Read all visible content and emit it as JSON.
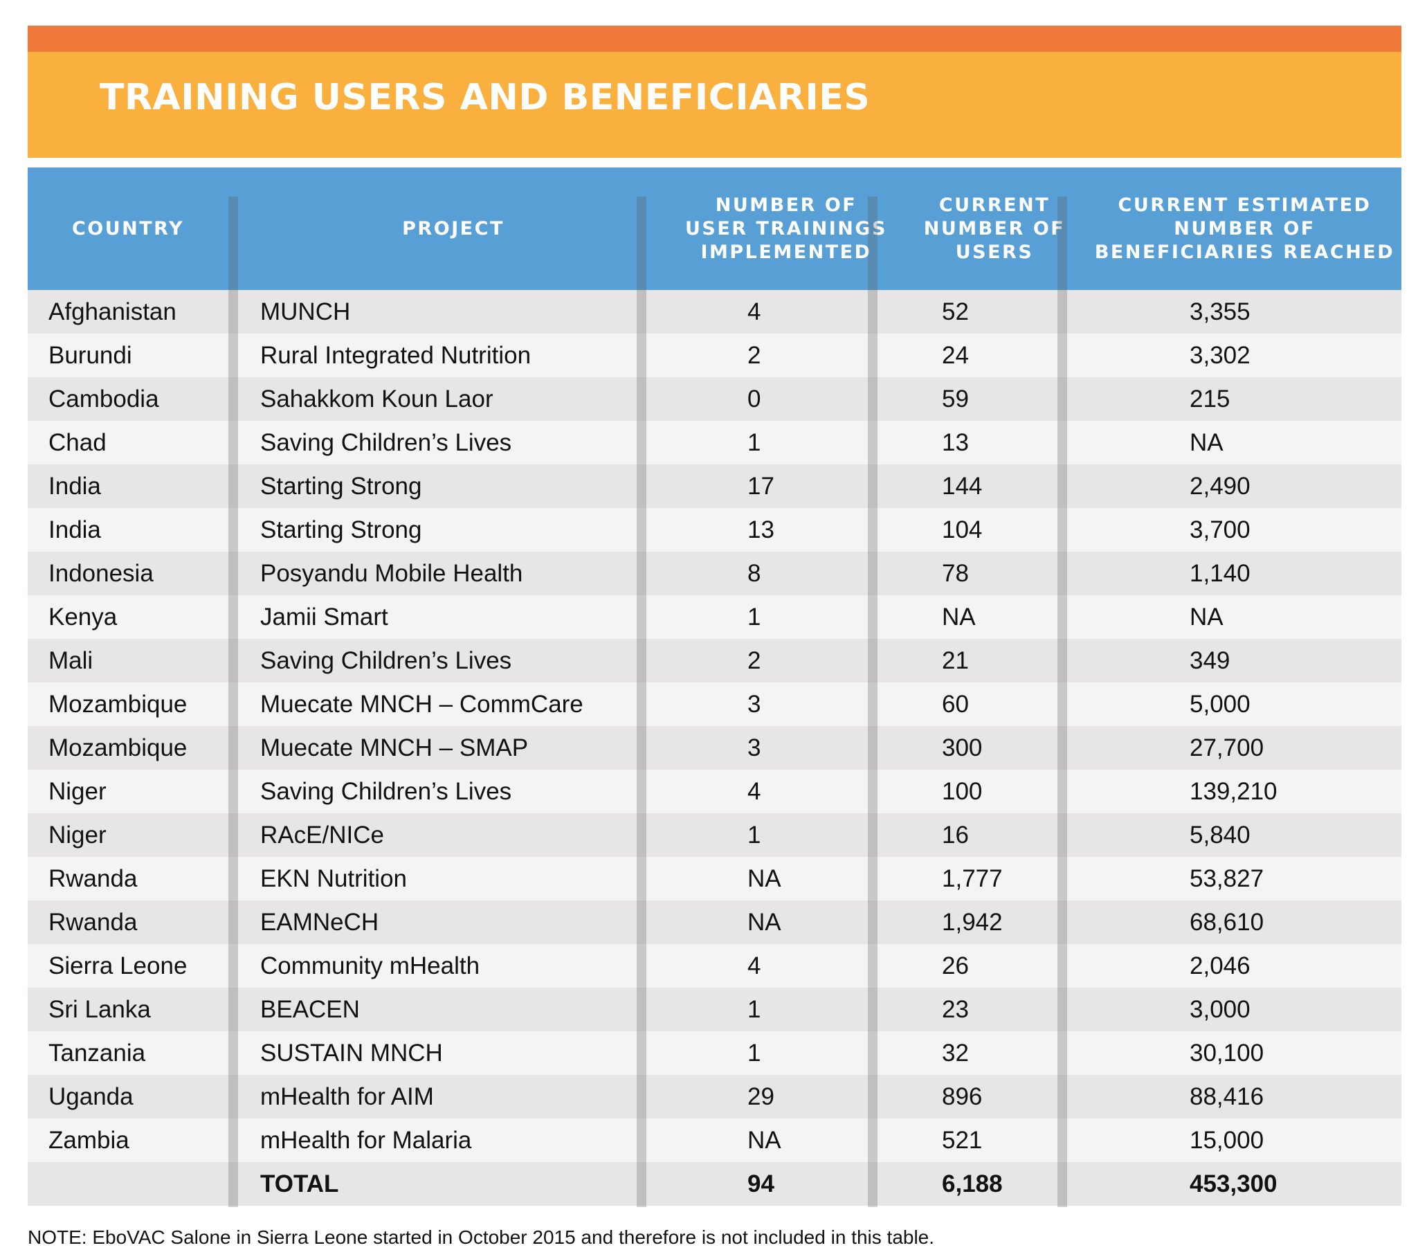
{
  "title": "TRAINING USERS AND BENEFICIARIES",
  "colors": {
    "orange_bar": "#f07a3c",
    "banner": "#f9b03e",
    "header": "#589fd5",
    "row_odd": "#e8e6e4",
    "row_even": "#f4f4f3"
  },
  "table": {
    "headers": [
      "COUNTRY",
      "PROJECT",
      "NUMBER OF\nUSER TRAININGS\nIMPLEMENTED",
      "CURRENT\nNUMBER OF\nUSERS",
      "CURRENT ESTIMATED\nNUMBER OF\nBENEFICIARIES REACHED"
    ],
    "rows": [
      [
        "Afghanistan",
        "MUNCH",
        "4",
        "52",
        "3,355"
      ],
      [
        "Burundi",
        "Rural Integrated Nutrition",
        "2",
        "24",
        "3,302"
      ],
      [
        "Cambodia",
        "Sahakkom Koun Laor",
        "0",
        "59",
        "215"
      ],
      [
        "Chad",
        "Saving Children’s Lives",
        "1",
        "13",
        "NA"
      ],
      [
        "India",
        "Starting Strong",
        "17",
        "144",
        "2,490"
      ],
      [
        "India",
        "Starting Strong",
        "13",
        "104",
        "3,700"
      ],
      [
        "Indonesia",
        "Posyandu Mobile Health",
        "8",
        "78",
        "1,140"
      ],
      [
        "Kenya",
        "Jamii Smart",
        "1",
        "NA",
        "NA"
      ],
      [
        "Mali",
        "Saving Children’s Lives",
        "2",
        "21",
        "349"
      ],
      [
        "Mozambique",
        "Muecate MNCH – CommCare",
        "3",
        "60",
        "5,000"
      ],
      [
        "Mozambique",
        "Muecate MNCH – SMAP",
        "3",
        "300",
        "27,700"
      ],
      [
        "Niger",
        "Saving Children’s Lives",
        "4",
        "100",
        "139,210"
      ],
      [
        "Niger",
        "RAcE/NICe",
        "1",
        "16",
        "5,840"
      ],
      [
        "Rwanda",
        "EKN Nutrition",
        "NA",
        "1,777",
        "53,827"
      ],
      [
        "Rwanda",
        "EAMNeCH",
        "NA",
        "1,942",
        "68,610"
      ],
      [
        "Sierra Leone",
        "Community mHealth",
        "4",
        "26",
        "2,046"
      ],
      [
        "Sri Lanka",
        "BEACEN",
        "1",
        "23",
        "3,000"
      ],
      [
        "Tanzania",
        "SUSTAIN MNCH",
        "1",
        "32",
        "30,100"
      ],
      [
        "Uganda",
        "mHealth for AIM",
        "29",
        "896",
        "88,416"
      ],
      [
        "Zambia",
        "mHealth for Malaria",
        "NA",
        "521",
        "15,000"
      ]
    ],
    "total": [
      "",
      "TOTAL",
      "94",
      "6,188",
      "453,300"
    ]
  },
  "note": {
    "label": "NOTE:",
    "text": " EboVAC Salone in Sierra Leone started in October 2015 and therefore is not included in this table."
  }
}
